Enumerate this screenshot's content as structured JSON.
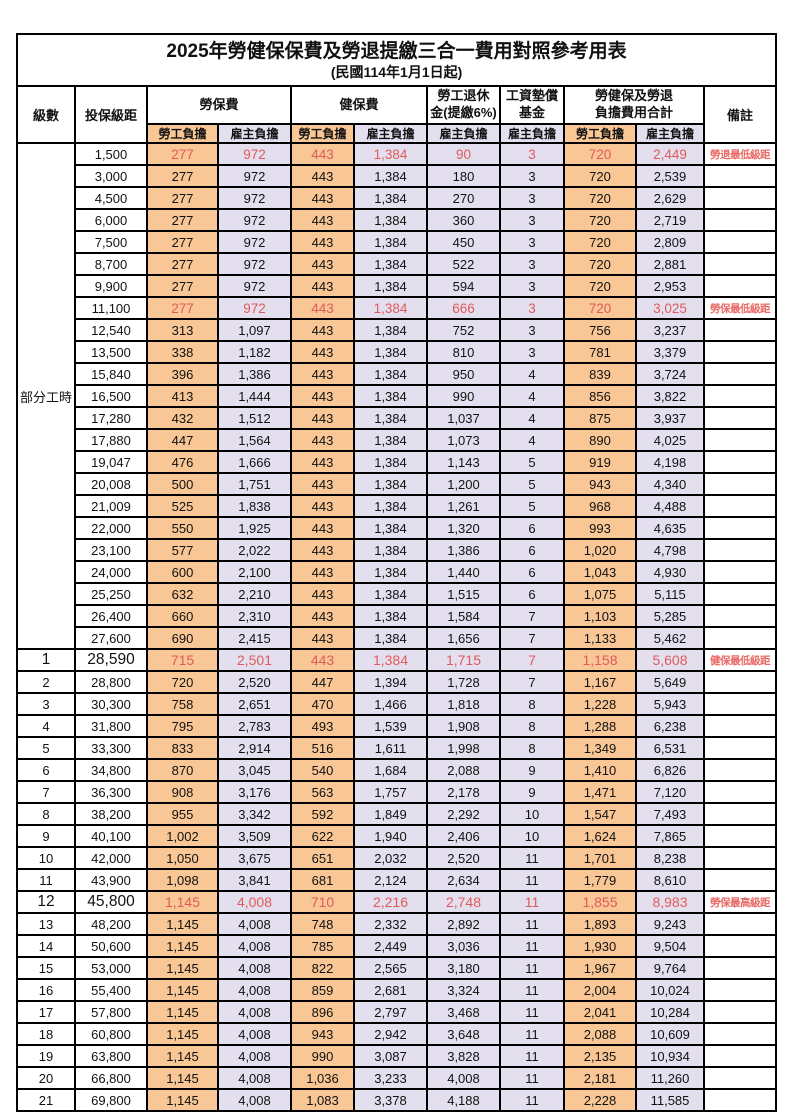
{
  "title": "2025年勞健保保費及勞退提繳三合一費用對照參考用表",
  "subtitle": "(民國114年1月1日起)",
  "columns": {
    "level": "級數",
    "salary_bracket": "投保級距",
    "labor_insurance": "勞保費",
    "health_insurance": "健保費",
    "pension_line1": "勞工退休",
    "pension_line2": "金(提繳6%)",
    "wage_fund_line1": "工資墊償",
    "wage_fund_line2": "基金",
    "total_line1": "勞健保及勞退",
    "total_line2": "負擔費用合計",
    "remark": "備註",
    "employee_share": "勞工負擔",
    "employer_share": "雇主負擔"
  },
  "part_time_label": "部分工時",
  "colors": {
    "employee_col_bg": "#F9C795",
    "employer_col_bg": "#E4DFEF",
    "highlight_red": "#E05A5A",
    "remark_red": "#E86A66",
    "border": "#000000"
  },
  "rows": [
    {
      "level": null,
      "salary": "1,500",
      "values": [
        "277",
        "972",
        "443",
        "1,384",
        "90",
        "3",
        "720",
        "2,449"
      ],
      "remark": "勞退最低級距",
      "emphasis": "red"
    },
    {
      "level": null,
      "salary": "3,000",
      "values": [
        "277",
        "972",
        "443",
        "1,384",
        "180",
        "3",
        "720",
        "2,539"
      ],
      "remark": "",
      "emphasis": ""
    },
    {
      "level": null,
      "salary": "4,500",
      "values": [
        "277",
        "972",
        "443",
        "1,384",
        "270",
        "3",
        "720",
        "2,629"
      ],
      "remark": "",
      "emphasis": ""
    },
    {
      "level": null,
      "salary": "6,000",
      "values": [
        "277",
        "972",
        "443",
        "1,384",
        "360",
        "3",
        "720",
        "2,719"
      ],
      "remark": "",
      "emphasis": ""
    },
    {
      "level": null,
      "salary": "7,500",
      "values": [
        "277",
        "972",
        "443",
        "1,384",
        "450",
        "3",
        "720",
        "2,809"
      ],
      "remark": "",
      "emphasis": ""
    },
    {
      "level": null,
      "salary": "8,700",
      "values": [
        "277",
        "972",
        "443",
        "1,384",
        "522",
        "3",
        "720",
        "2,881"
      ],
      "remark": "",
      "emphasis": ""
    },
    {
      "level": null,
      "salary": "9,900",
      "values": [
        "277",
        "972",
        "443",
        "1,384",
        "594",
        "3",
        "720",
        "2,953"
      ],
      "remark": "",
      "emphasis": ""
    },
    {
      "level": null,
      "salary": "11,100",
      "values": [
        "277",
        "972",
        "443",
        "1,384",
        "666",
        "3",
        "720",
        "3,025"
      ],
      "remark": "勞保最低級距",
      "emphasis": "red"
    },
    {
      "level": null,
      "salary": "12,540",
      "values": [
        "313",
        "1,097",
        "443",
        "1,384",
        "752",
        "3",
        "756",
        "3,237"
      ],
      "remark": "",
      "emphasis": ""
    },
    {
      "level": null,
      "salary": "13,500",
      "values": [
        "338",
        "1,182",
        "443",
        "1,384",
        "810",
        "3",
        "781",
        "3,379"
      ],
      "remark": "",
      "emphasis": ""
    },
    {
      "level": null,
      "salary": "15,840",
      "values": [
        "396",
        "1,386",
        "443",
        "1,384",
        "950",
        "4",
        "839",
        "3,724"
      ],
      "remark": "",
      "emphasis": ""
    },
    {
      "level": null,
      "salary": "16,500",
      "values": [
        "413",
        "1,444",
        "443",
        "1,384",
        "990",
        "4",
        "856",
        "3,822"
      ],
      "remark": "",
      "emphasis": ""
    },
    {
      "level": null,
      "salary": "17,280",
      "values": [
        "432",
        "1,512",
        "443",
        "1,384",
        "1,037",
        "4",
        "875",
        "3,937"
      ],
      "remark": "",
      "emphasis": ""
    },
    {
      "level": null,
      "salary": "17,880",
      "values": [
        "447",
        "1,564",
        "443",
        "1,384",
        "1,073",
        "4",
        "890",
        "4,025"
      ],
      "remark": "",
      "emphasis": ""
    },
    {
      "level": null,
      "salary": "19,047",
      "values": [
        "476",
        "1,666",
        "443",
        "1,384",
        "1,143",
        "5",
        "919",
        "4,198"
      ],
      "remark": "",
      "emphasis": ""
    },
    {
      "level": null,
      "salary": "20,008",
      "values": [
        "500",
        "1,751",
        "443",
        "1,384",
        "1,200",
        "5",
        "943",
        "4,340"
      ],
      "remark": "",
      "emphasis": ""
    },
    {
      "level": null,
      "salary": "21,009",
      "values": [
        "525",
        "1,838",
        "443",
        "1,384",
        "1,261",
        "5",
        "968",
        "4,488"
      ],
      "remark": "",
      "emphasis": ""
    },
    {
      "level": null,
      "salary": "22,000",
      "values": [
        "550",
        "1,925",
        "443",
        "1,384",
        "1,320",
        "6",
        "993",
        "4,635"
      ],
      "remark": "",
      "emphasis": ""
    },
    {
      "level": null,
      "salary": "23,100",
      "values": [
        "577",
        "2,022",
        "443",
        "1,384",
        "1,386",
        "6",
        "1,020",
        "4,798"
      ],
      "remark": "",
      "emphasis": ""
    },
    {
      "level": null,
      "salary": "24,000",
      "values": [
        "600",
        "2,100",
        "443",
        "1,384",
        "1,440",
        "6",
        "1,043",
        "4,930"
      ],
      "remark": "",
      "emphasis": ""
    },
    {
      "level": null,
      "salary": "25,250",
      "values": [
        "632",
        "2,210",
        "443",
        "1,384",
        "1,515",
        "6",
        "1,075",
        "5,115"
      ],
      "remark": "",
      "emphasis": ""
    },
    {
      "level": null,
      "salary": "26,400",
      "values": [
        "660",
        "2,310",
        "443",
        "1,384",
        "1,584",
        "7",
        "1,103",
        "5,285"
      ],
      "remark": "",
      "emphasis": ""
    },
    {
      "level": null,
      "salary": "27,600",
      "values": [
        "690",
        "2,415",
        "443",
        "1,384",
        "1,656",
        "7",
        "1,133",
        "5,462"
      ],
      "remark": "",
      "emphasis": ""
    },
    {
      "level": "1",
      "salary": "28,590",
      "values": [
        "715",
        "2,501",
        "443",
        "1,384",
        "1,715",
        "7",
        "1,158",
        "5,608"
      ],
      "remark": "健保最低級距",
      "emphasis": "red-large"
    },
    {
      "level": "2",
      "salary": "28,800",
      "values": [
        "720",
        "2,520",
        "447",
        "1,394",
        "1,728",
        "7",
        "1,167",
        "5,649"
      ],
      "remark": "",
      "emphasis": ""
    },
    {
      "level": "3",
      "salary": "30,300",
      "values": [
        "758",
        "2,651",
        "470",
        "1,466",
        "1,818",
        "8",
        "1,228",
        "5,943"
      ],
      "remark": "",
      "emphasis": ""
    },
    {
      "level": "4",
      "salary": "31,800",
      "values": [
        "795",
        "2,783",
        "493",
        "1,539",
        "1,908",
        "8",
        "1,288",
        "6,238"
      ],
      "remark": "",
      "emphasis": ""
    },
    {
      "level": "5",
      "salary": "33,300",
      "values": [
        "833",
        "2,914",
        "516",
        "1,611",
        "1,998",
        "8",
        "1,349",
        "6,531"
      ],
      "remark": "",
      "emphasis": ""
    },
    {
      "level": "6",
      "salary": "34,800",
      "values": [
        "870",
        "3,045",
        "540",
        "1,684",
        "2,088",
        "9",
        "1,410",
        "6,826"
      ],
      "remark": "",
      "emphasis": ""
    },
    {
      "level": "7",
      "salary": "36,300",
      "values": [
        "908",
        "3,176",
        "563",
        "1,757",
        "2,178",
        "9",
        "1,471",
        "7,120"
      ],
      "remark": "",
      "emphasis": ""
    },
    {
      "level": "8",
      "salary": "38,200",
      "values": [
        "955",
        "3,342",
        "592",
        "1,849",
        "2,292",
        "10",
        "1,547",
        "7,493"
      ],
      "remark": "",
      "emphasis": ""
    },
    {
      "level": "9",
      "salary": "40,100",
      "values": [
        "1,002",
        "3,509",
        "622",
        "1,940",
        "2,406",
        "10",
        "1,624",
        "7,865"
      ],
      "remark": "",
      "emphasis": ""
    },
    {
      "level": "10",
      "salary": "42,000",
      "values": [
        "1,050",
        "3,675",
        "651",
        "2,032",
        "2,520",
        "11",
        "1,701",
        "8,238"
      ],
      "remark": "",
      "emphasis": ""
    },
    {
      "level": "11",
      "salary": "43,900",
      "values": [
        "1,098",
        "3,841",
        "681",
        "2,124",
        "2,634",
        "11",
        "1,779",
        "8,610"
      ],
      "remark": "",
      "emphasis": ""
    },
    {
      "level": "12",
      "salary": "45,800",
      "values": [
        "1,145",
        "4,008",
        "710",
        "2,216",
        "2,748",
        "11",
        "1,855",
        "8,983"
      ],
      "remark": "勞保最高級距",
      "emphasis": "red-large"
    },
    {
      "level": "13",
      "salary": "48,200",
      "values": [
        "1,145",
        "4,008",
        "748",
        "2,332",
        "2,892",
        "11",
        "1,893",
        "9,243"
      ],
      "remark": "",
      "emphasis": ""
    },
    {
      "level": "14",
      "salary": "50,600",
      "values": [
        "1,145",
        "4,008",
        "785",
        "2,449",
        "3,036",
        "11",
        "1,930",
        "9,504"
      ],
      "remark": "",
      "emphasis": ""
    },
    {
      "level": "15",
      "salary": "53,000",
      "values": [
        "1,145",
        "4,008",
        "822",
        "2,565",
        "3,180",
        "11",
        "1,967",
        "9,764"
      ],
      "remark": "",
      "emphasis": ""
    },
    {
      "level": "16",
      "salary": "55,400",
      "values": [
        "1,145",
        "4,008",
        "859",
        "2,681",
        "3,324",
        "11",
        "2,004",
        "10,024"
      ],
      "remark": "",
      "emphasis": ""
    },
    {
      "level": "17",
      "salary": "57,800",
      "values": [
        "1,145",
        "4,008",
        "896",
        "2,797",
        "3,468",
        "11",
        "2,041",
        "10,284"
      ],
      "remark": "",
      "emphasis": ""
    },
    {
      "level": "18",
      "salary": "60,800",
      "values": [
        "1,145",
        "4,008",
        "943",
        "2,942",
        "3,648",
        "11",
        "2,088",
        "10,609"
      ],
      "remark": "",
      "emphasis": ""
    },
    {
      "level": "19",
      "salary": "63,800",
      "values": [
        "1,145",
        "4,008",
        "990",
        "3,087",
        "3,828",
        "11",
        "2,135",
        "10,934"
      ],
      "remark": "",
      "emphasis": ""
    },
    {
      "level": "20",
      "salary": "66,800",
      "values": [
        "1,145",
        "4,008",
        "1,036",
        "3,233",
        "4,008",
        "11",
        "2,181",
        "11,260"
      ],
      "remark": "",
      "emphasis": ""
    },
    {
      "level": "21",
      "salary": "69,800",
      "values": [
        "1,145",
        "4,008",
        "1,083",
        "3,378",
        "4,188",
        "11",
        "2,228",
        "11,585"
      ],
      "remark": "",
      "emphasis": ""
    }
  ]
}
